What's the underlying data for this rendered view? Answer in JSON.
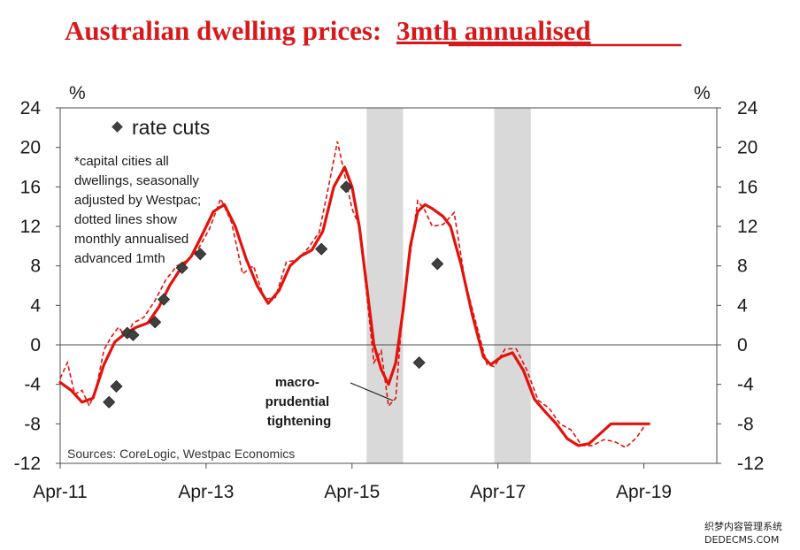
{
  "chart_data": {
    "type": "line",
    "title": "Australian dwelling prices:",
    "title_emphasis": "3mth annualised",
    "y_unit_left": "%",
    "y_unit_right": "%",
    "ylim": [
      -12,
      24
    ],
    "yticks": [
      24,
      20,
      16,
      12,
      8,
      4,
      0,
      -4,
      -8,
      -12
    ],
    "xlim": [
      2011.25,
      2020.25
    ],
    "xticks": [
      {
        "label": "Apr-11",
        "x": 2011.25
      },
      {
        "label": "Apr-13",
        "x": 2013.25
      },
      {
        "label": "Apr-15",
        "x": 2015.25
      },
      {
        "label": "Apr-17",
        "x": 2017.25
      },
      {
        "label": "Apr-19",
        "x": 2019.25
      }
    ],
    "shaded_periods": [
      [
        2015.45,
        2015.95
      ],
      [
        2017.2,
        2017.7
      ]
    ],
    "series": [
      {
        "style": "solid",
        "color": "#e3120b",
        "x": [
          2011.25,
          2011.4,
          2011.55,
          2011.7,
          2011.85,
          2012.0,
          2012.15,
          2012.3,
          2012.45,
          2012.6,
          2012.75,
          2012.9,
          2013.05,
          2013.2,
          2013.35,
          2013.5,
          2013.65,
          2013.8,
          2013.95,
          2014.1,
          2014.25,
          2014.4,
          2014.55,
          2014.7,
          2014.85,
          2015.0,
          2015.15,
          2015.25,
          2015.35,
          2015.45,
          2015.55,
          2015.65,
          2015.75,
          2015.85,
          2015.95,
          2016.05,
          2016.15,
          2016.25,
          2016.35,
          2016.5,
          2016.6,
          2016.75,
          2016.9,
          2017.05,
          2017.15,
          2017.3,
          2017.45,
          2017.6,
          2017.75,
          2017.9,
          2018.05,
          2018.2,
          2018.35,
          2018.5,
          2018.65,
          2018.8,
          2018.95,
          2019.1,
          2019.25,
          2019.32
        ],
        "values": [
          -3.8,
          -4.6,
          -5.8,
          -5.4,
          -2.0,
          0.3,
          1.2,
          1.8,
          2.2,
          3.8,
          6.0,
          7.7,
          9.0,
          11.2,
          13.5,
          14.2,
          12.0,
          8.7,
          6.0,
          4.2,
          5.5,
          8.0,
          9.0,
          9.6,
          11.5,
          16.0,
          18.0,
          16.0,
          12.0,
          6.0,
          0.0,
          -2.5,
          -4.0,
          -1.8,
          3.5,
          10.0,
          13.5,
          14.2,
          13.8,
          13.0,
          12.0,
          8.0,
          3.0,
          -1.2,
          -2.0,
          -1.2,
          -0.8,
          -2.6,
          -5.5,
          -6.8,
          -8.0,
          -9.5,
          -10.2,
          -10.0,
          -9.0,
          -8.0,
          -8.0,
          -8.0,
          -8.0,
          -8.0
        ]
      },
      {
        "style": "dashed",
        "color": "#e3120b",
        "x": [
          2011.25,
          2011.35,
          2011.45,
          2011.55,
          2011.65,
          2011.75,
          2011.85,
          2011.95,
          2012.05,
          2012.15,
          2012.25,
          2012.4,
          2012.55,
          2012.7,
          2012.85,
          2013.0,
          2013.15,
          2013.3,
          2013.45,
          2013.6,
          2013.75,
          2013.9,
          2014.05,
          2014.2,
          2014.35,
          2014.5,
          2014.65,
          2014.8,
          2014.95,
          2015.05,
          2015.15,
          2015.25,
          2015.35,
          2015.45,
          2015.55,
          2015.65,
          2015.75,
          2015.85,
          2015.95,
          2016.05,
          2016.15,
          2016.25,
          2016.35,
          2016.5,
          2016.65,
          2016.8,
          2016.95,
          2017.1,
          2017.2,
          2017.35,
          2017.5,
          2017.65,
          2017.8,
          2017.95,
          2018.1,
          2018.25,
          2018.4,
          2018.55,
          2018.7,
          2018.85,
          2019.0,
          2019.15,
          2019.28
        ],
        "values": [
          -3.4,
          -1.8,
          -5.0,
          -4.6,
          -6.2,
          -4.2,
          -0.5,
          0.8,
          1.8,
          0.8,
          2.2,
          2.8,
          4.5,
          6.6,
          8.0,
          8.6,
          9.8,
          11.8,
          14.8,
          12.4,
          7.2,
          8.0,
          4.6,
          4.8,
          8.4,
          8.6,
          9.8,
          11.4,
          16.8,
          20.6,
          17.2,
          13.8,
          12.0,
          5.2,
          -1.8,
          -0.6,
          -6.2,
          -5.4,
          4.2,
          9.2,
          14.6,
          13.6,
          12.0,
          12.2,
          13.4,
          6.4,
          2.2,
          -2.0,
          -2.2,
          -0.4,
          -0.4,
          -2.6,
          -5.6,
          -6.4,
          -8.0,
          -8.6,
          -10.2,
          -10.2,
          -9.6,
          -9.8,
          -10.4,
          -9.4,
          -8.0
        ]
      }
    ],
    "markers": {
      "shape": "diamond",
      "color": "#404040",
      "label": "rate cuts",
      "points": [
        {
          "x": 2011.92,
          "y": -5.8
        },
        {
          "x": 2012.02,
          "y": -4.2
        },
        {
          "x": 2012.17,
          "y": 1.2
        },
        {
          "x": 2012.25,
          "y": 1.0
        },
        {
          "x": 2012.55,
          "y": 2.3
        },
        {
          "x": 2012.67,
          "y": 4.6
        },
        {
          "x": 2012.92,
          "y": 7.8
        },
        {
          "x": 2013.17,
          "y": 9.2
        },
        {
          "x": 2014.83,
          "y": 9.7
        },
        {
          "x": 2015.17,
          "y": 16.0
        },
        {
          "x": 2016.17,
          "y": -1.8
        },
        {
          "x": 2016.42,
          "y": 8.2
        }
      ]
    },
    "note_lines": [
      "*capital cities all",
      "dwellings, seasonally",
      "adjusted by Westpac;",
      "dotted lines show",
      "monthly annualised",
      "advanced 1mth"
    ],
    "annotation_lines": [
      "macro-",
      "prudential",
      "tightening"
    ],
    "source": "Sources: CoreLogic, Westpac Economics",
    "watermark": [
      "织梦内容管理系统",
      "DEDECMS.COM"
    ],
    "grid": false
  }
}
